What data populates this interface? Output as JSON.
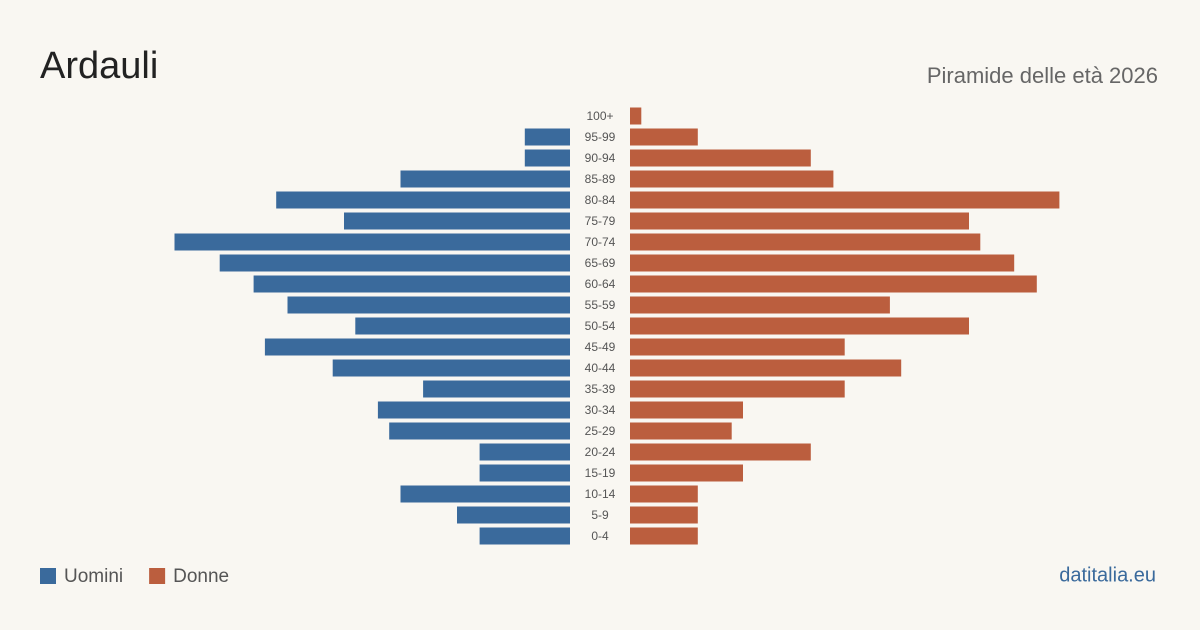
{
  "chart_data": {
    "type": "population-pyramid",
    "title": "Ardauli",
    "subtitle": "Piramide delle età 2026",
    "source": "datitalia.eu",
    "categories": [
      "100+",
      "95-99",
      "90-94",
      "85-89",
      "80-84",
      "75-79",
      "70-74",
      "65-69",
      "60-64",
      "55-59",
      "50-54",
      "45-49",
      "40-44",
      "35-39",
      "30-34",
      "25-29",
      "20-24",
      "15-19",
      "10-14",
      "5-9",
      "0-4"
    ],
    "series": [
      {
        "name": "Uomini",
        "color": "#3a6a9c",
        "values": [
          0,
          4,
          4,
          15,
          26,
          20,
          35,
          31,
          28,
          25,
          19,
          27,
          21,
          13,
          17,
          16,
          8,
          8,
          15,
          10,
          8
        ]
      },
      {
        "name": "Donne",
        "color": "#bb5e3e",
        "values": [
          1,
          6,
          16,
          18,
          38,
          30,
          31,
          34,
          36,
          23,
          30,
          19,
          24,
          19,
          10,
          9,
          16,
          10,
          6,
          6,
          6
        ]
      }
    ]
  }
}
